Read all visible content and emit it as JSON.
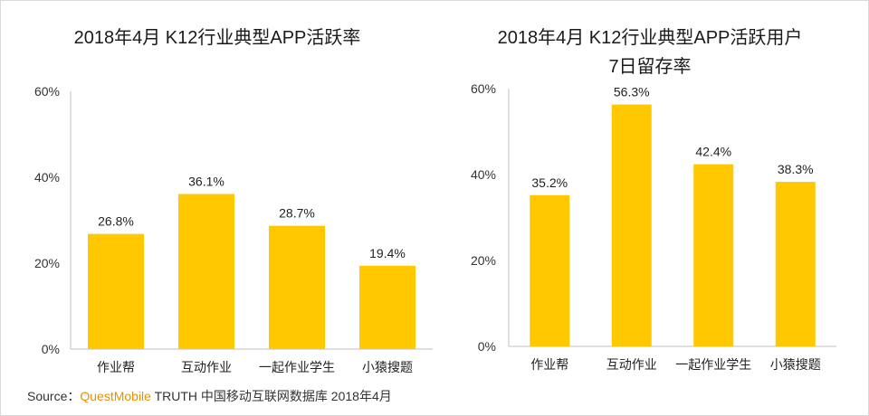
{
  "colors": {
    "bar": "#FFC800",
    "brand": "#E69100"
  },
  "chart_data": [
    {
      "type": "bar",
      "title": "2018年4月 K12行业典型APP活跃率",
      "categories": [
        "作业帮",
        "互动作业",
        "一起作业学生",
        "小猿搜题"
      ],
      "values": [
        26.8,
        36.1,
        28.7,
        19.4
      ],
      "value_labels": [
        "26.8%",
        "36.1%",
        "28.7%",
        "19.4%"
      ],
      "y_ticks": [
        "0%",
        "20%",
        "40%",
        "60%"
      ],
      "ylim": [
        0,
        60
      ],
      "grid": false,
      "legend": "none"
    },
    {
      "type": "bar",
      "title": "2018年4月 K12行业典型APP活跃用户",
      "subtitle": "7日留存率",
      "categories": [
        "作业帮",
        "互动作业",
        "一起作业学生",
        "小猿搜题"
      ],
      "values": [
        35.2,
        56.3,
        42.4,
        38.3
      ],
      "value_labels": [
        "35.2%",
        "56.3%",
        "42.4%",
        "38.3%"
      ],
      "y_ticks": [
        "0%",
        "20%",
        "40%",
        "60%"
      ],
      "ylim": [
        0,
        60
      ],
      "grid": false,
      "legend": "none"
    }
  ],
  "source": {
    "prefix": "Source：",
    "brand": "QuestMobile",
    "rest": " TRUTH 中国移动互联网数据库 2018年4月"
  }
}
